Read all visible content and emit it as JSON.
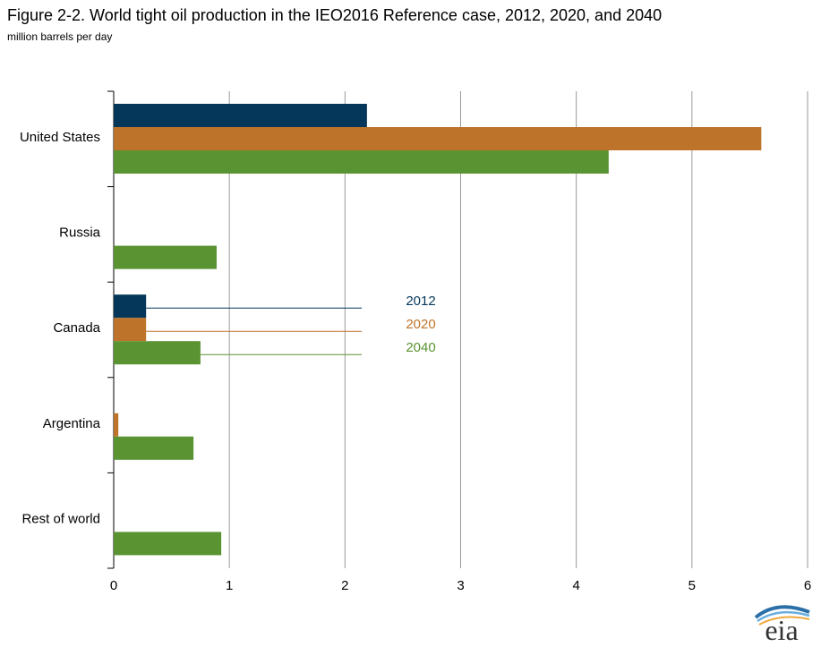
{
  "header": {
    "title": "Figure 2-2. World tight oil production in the IEO2016 Reference case, 2012, 2020, and 2040",
    "subtitle": "million barrels per day"
  },
  "logo": {
    "text": "eia",
    "icon": "eia-logo-icon"
  },
  "colors": {
    "2012": "#04375a",
    "2020": "#bd732a",
    "2040": "#5a9331",
    "grid": "#9a9a9a"
  },
  "chart_data": {
    "type": "bar",
    "orientation": "horizontal",
    "title": "Figure 2-2. World tight oil production in the IEO2016 Reference case, 2012, 2020, and 2040",
    "subtitle": "million barrels per day",
    "categories": [
      "United States",
      "Russia",
      "Canada",
      "Argentina",
      "Rest of world"
    ],
    "series": [
      {
        "name": "2012",
        "values": [
          2.19,
          0,
          0.28,
          0,
          0
        ]
      },
      {
        "name": "2020",
        "values": [
          5.6,
          0,
          0.28,
          0.04,
          0
        ]
      },
      {
        "name": "2040",
        "values": [
          4.28,
          0.89,
          0.75,
          0.69,
          0.93
        ]
      }
    ],
    "xlim": [
      0,
      6
    ],
    "xticks": [
      "0",
      "1",
      "2",
      "3",
      "4",
      "5",
      "6"
    ],
    "grid": "vertical",
    "legend": "inline labels at center"
  }
}
